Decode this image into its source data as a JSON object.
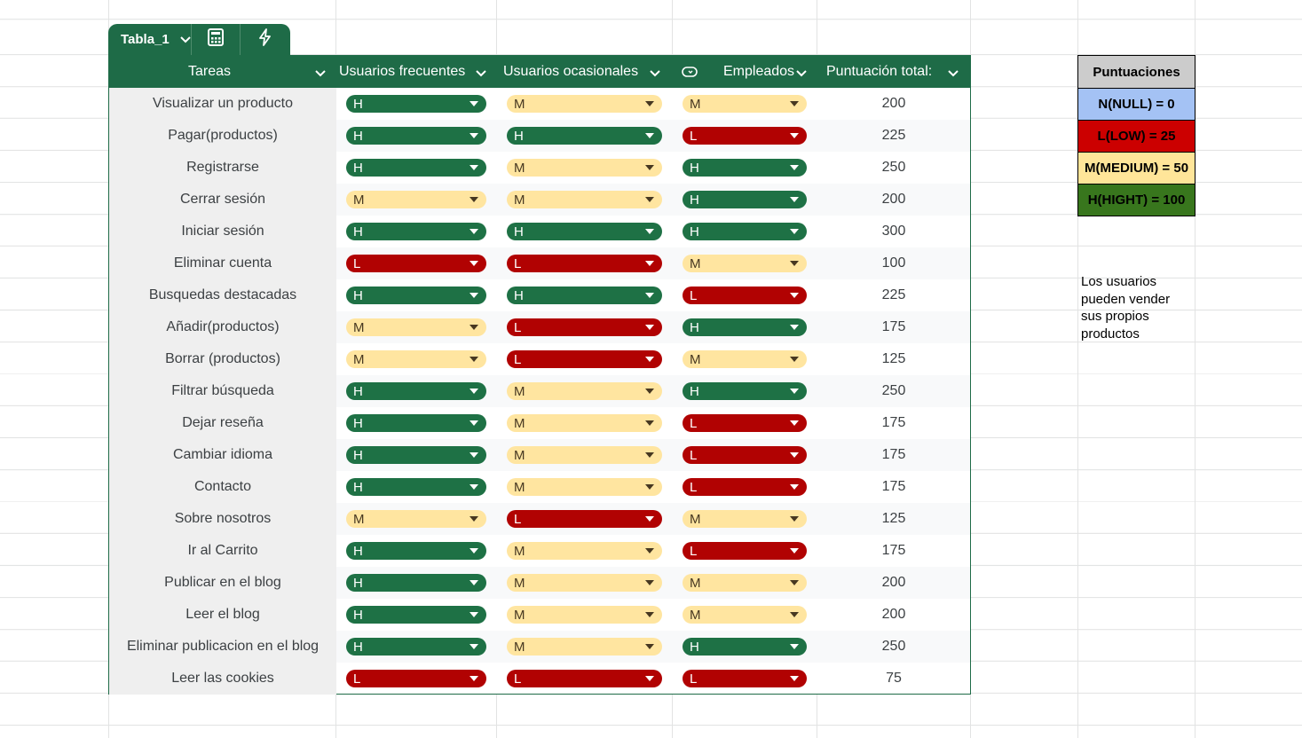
{
  "table_tab": {
    "name": "Tabla_1"
  },
  "headers": {
    "tareas": "Tareas",
    "frecuentes": "Usuarios frecuentes",
    "ocasionales": "Usuarios ocasionales",
    "empleados": "Empleados",
    "total": "Puntuación total:"
  },
  "rows": [
    {
      "task": "Visualizar un producto",
      "f": "H",
      "o": "M",
      "e": "M",
      "total": "200"
    },
    {
      "task": "Pagar(productos)",
      "f": "H",
      "o": "H",
      "e": "L",
      "total": "225"
    },
    {
      "task": "Registrarse",
      "f": "H",
      "o": "M",
      "e": "H",
      "total": "250"
    },
    {
      "task": "Cerrar sesión",
      "f": "M",
      "o": "M",
      "e": "H",
      "total": "200"
    },
    {
      "task": "Iniciar sesión",
      "f": "H",
      "o": "H",
      "e": "H",
      "total": "300"
    },
    {
      "task": "Eliminar cuenta",
      "f": "L",
      "o": "L",
      "e": "M",
      "total": "100"
    },
    {
      "task": "Busquedas destacadas",
      "f": "H",
      "o": "H",
      "e": "L",
      "total": "225"
    },
    {
      "task": "Añadir(productos)",
      "f": "M",
      "o": "L",
      "e": "H",
      "total": "175"
    },
    {
      "task": "Borrar (productos)",
      "f": "M",
      "o": "L",
      "e": "M",
      "total": "125"
    },
    {
      "task": "Filtrar búsqueda",
      "f": "H",
      "o": "M",
      "e": "H",
      "total": "250"
    },
    {
      "task": "Dejar reseña",
      "f": "H",
      "o": "M",
      "e": "L",
      "total": "175"
    },
    {
      "task": "Cambiar idioma",
      "f": "H",
      "o": "M",
      "e": "L",
      "total": "175"
    },
    {
      "task": "Contacto",
      "f": "H",
      "o": "M",
      "e": "L",
      "total": "175"
    },
    {
      "task": "Sobre nosotros",
      "f": "M",
      "o": "L",
      "e": "M",
      "total": "125"
    },
    {
      "task": "Ir al Carrito",
      "f": "H",
      "o": "M",
      "e": "L",
      "total": "175"
    },
    {
      "task": "Publicar en el blog",
      "f": "H",
      "o": "M",
      "e": "M",
      "total": "200"
    },
    {
      "task": "Leer el blog",
      "f": "H",
      "o": "M",
      "e": "M",
      "total": "200"
    },
    {
      "task": "Eliminar publicacion en el blog",
      "f": "H",
      "o": "M",
      "e": "H",
      "total": "250"
    },
    {
      "task": "Leer las cookies",
      "f": "L",
      "o": "L",
      "e": "L",
      "total": "75"
    }
  ],
  "legend": {
    "title": "Puntuaciones",
    "items": [
      {
        "label": "N(NULL) = 0",
        "color": "#a4c2f4"
      },
      {
        "label": "L(LOW) = 25",
        "color": "#cc0000"
      },
      {
        "label": "M(MEDIUM) = 50",
        "color": "#ffe599"
      },
      {
        "label": "H(HIGHT) = 100",
        "color": "#38761d"
      }
    ],
    "title_color": "#cccccc"
  },
  "note": "Los usuarios pueden vender sus propios productos",
  "colors": {
    "table_header": "#1e6b47",
    "chip_H": "#1e7145",
    "chip_L": "#b10202",
    "chip_M": "#ffe5a0"
  }
}
